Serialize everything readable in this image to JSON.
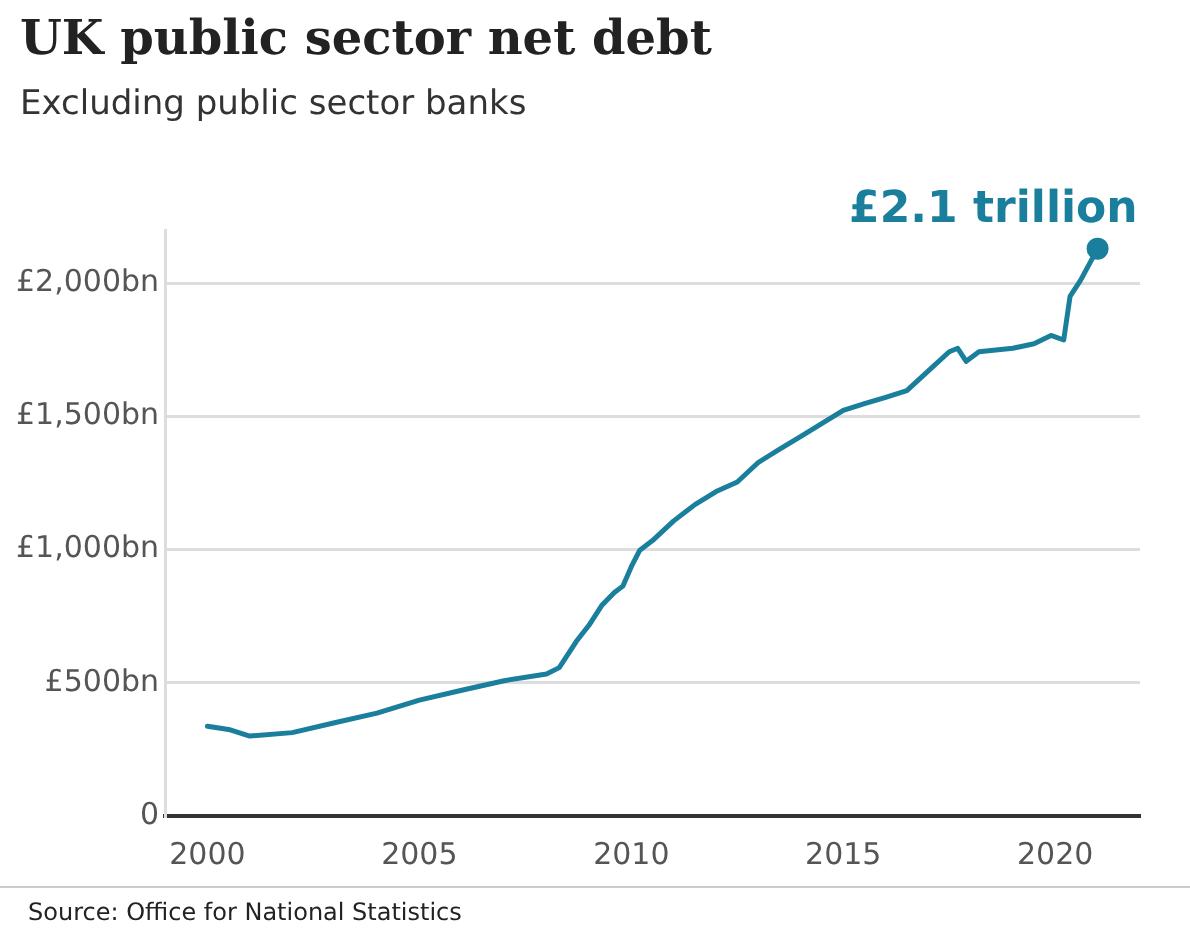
{
  "chart_data": {
    "type": "line",
    "title": "UK public sector net debt",
    "subtitle": "Excluding public sector banks",
    "x": [
      2000,
      2000.5,
      2001,
      2002,
      2003,
      2004,
      2005,
      2006,
      2007,
      2008,
      2008.3,
      2008.7,
      2009,
      2009.3,
      2009.6,
      2009.8,
      2010,
      2010.2,
      2010.5,
      2011,
      2011.5,
      2012,
      2012.5,
      2013,
      2013.5,
      2014,
      2014.5,
      2015,
      2015.5,
      2016,
      2016.5,
      2017,
      2017.5,
      2017.7,
      2017.9,
      2018.2,
      2019,
      2019.5,
      2019.9,
      2020.2,
      2020.35,
      2020.6,
      2021
    ],
    "series": [
      {
        "color": "#1a7f9c",
        "values": [
          337,
          325,
          300,
          313,
          350,
          386,
          435,
          472,
          508,
          533,
          557,
          655,
          716,
          790,
          839,
          863,
          936,
          998,
          1034,
          1108,
          1169,
          1218,
          1254,
          1328,
          1377,
          1425,
          1474,
          1523,
          1548,
          1572,
          1597,
          1670,
          1743,
          1756,
          1707,
          1743,
          1756,
          1773,
          1804,
          1787,
          1951,
          2012,
          2130
        ]
      },
      {
        "type": "scatter",
        "color": "#1a7f9c",
        "x": [
          2021
        ],
        "values": [
          2130
        ],
        "marker": "circle"
      }
    ],
    "xlim": [
      1999,
      2022
    ],
    "ylim": [
      0,
      2200
    ],
    "xticks": [
      2000,
      2005,
      2010,
      2015,
      2020
    ],
    "yticks": [
      0,
      {
        "value": 500,
        "label": "£500bn"
      },
      {
        "value": 1000,
        "label": "£1,000bn"
      },
      {
        "value": 1500,
        "label": "£1,500bn"
      },
      {
        "value": 2000,
        "label": "£2,000bn"
      }
    ],
    "grid": "y",
    "legend": false,
    "marker": "none",
    "line_style": "solid",
    "annotations": [
      {
        "text": "£2.1 trillion",
        "x": 2021,
        "y": 2130
      },
      "Source: Office for National Statistics"
    ]
  }
}
